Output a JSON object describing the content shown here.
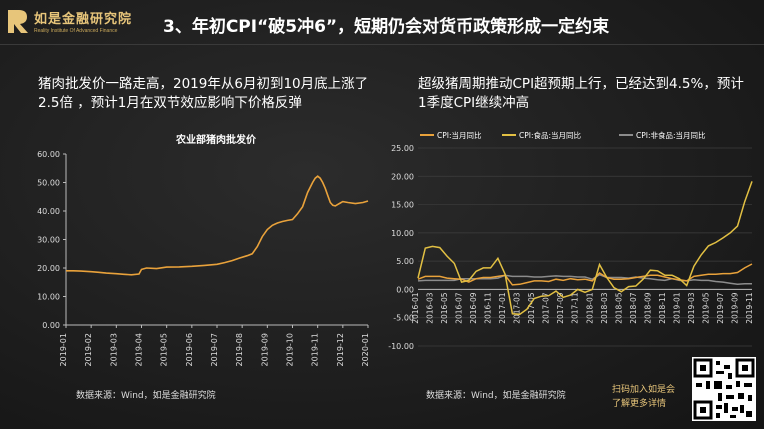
{
  "logo": {
    "cn": "如是金融研究院",
    "en": "Reality Institute Of Advanced Finance"
  },
  "title": "3、年初CPI“破5冲6”，短期仍会对货币政策形成一定约束",
  "left_note": "猪肉批发价一路走高，2019年从6月初到10月底上涨了2.5倍 ，预计1月在双节效应影响下价格反弹",
  "right_note": "超级猪周期推动CPI超预期上行，已经达到4.5%，预计1季度CPI继续冲高",
  "left_source": "数据来源：Wind，如是金融研究院",
  "right_source": "数据来源：Wind，如是金融研究院",
  "qr_text": [
    "扫码加入如是会",
    "了解更多详情"
  ],
  "colors": {
    "pork": "#e9a23b",
    "cpi": "#e9a23b",
    "food": "#e2c043",
    "nonfood": "#8c8c8c",
    "gold": "#e7c57a"
  },
  "chart_data": [
    {
      "type": "line",
      "title": "农业部猪肉批发价",
      "ylim": [
        0,
        60
      ],
      "yticks": [
        "0.00",
        "10.00",
        "20.00",
        "30.00",
        "40.00",
        "50.00",
        "60.00"
      ],
      "xticks": [
        "2019-01",
        "2019-02",
        "2019-03",
        "2019-04",
        "2019-05",
        "2019-06",
        "2019-07",
        "2019-08",
        "2019-09",
        "2019-10",
        "2019-11",
        "2019-12",
        "2020-01"
      ],
      "grid": false,
      "series": [
        {
          "x": [
            0,
            0.3,
            0.6,
            1.0,
            1.3,
            1.6,
            2.0,
            2.3,
            2.6,
            2.9,
            3.0,
            3.2,
            3.6,
            4.0,
            4.5,
            5.0,
            5.5,
            6.0,
            6.3,
            6.6,
            6.9,
            7.2,
            7.4,
            7.6,
            7.8,
            8.0,
            8.2,
            8.4,
            8.6,
            8.8,
            9.0,
            9.2,
            9.4,
            9.6,
            9.8,
            9.9,
            10.0,
            10.1,
            10.2,
            10.3,
            10.4,
            10.5,
            10.6,
            10.7,
            10.8,
            10.9,
            11.0,
            11.2,
            11.5,
            11.8,
            12.0
          ],
          "values": [
            19.0,
            19.0,
            18.9,
            18.7,
            18.5,
            18.2,
            18.0,
            17.8,
            17.6,
            17.9,
            19.5,
            20.0,
            19.8,
            20.3,
            20.4,
            20.6,
            20.9,
            21.3,
            21.9,
            22.6,
            23.5,
            24.3,
            25.0,
            27.5,
            31.0,
            33.5,
            35.0,
            35.8,
            36.3,
            36.7,
            37.0,
            39.0,
            41.5,
            46.5,
            50.0,
            51.5,
            52.2,
            51.5,
            50.0,
            48.0,
            45.5,
            43.0,
            42.0,
            41.8,
            42.3,
            42.8,
            43.3,
            43.0,
            42.6,
            43.0,
            43.5
          ]
        }
      ]
    },
    {
      "type": "line",
      "ylim": [
        -10,
        25
      ],
      "yticks": [
        "-10.00",
        "-5.00",
        "0.00",
        "5.00",
        "10.00",
        "15.00",
        "20.00",
        "25.00"
      ],
      "xticks": [
        "2016-01",
        "2016-03",
        "2016-05",
        "2016-07",
        "2016-09",
        "2016-11",
        "2017-01",
        "2017-03",
        "2017-05",
        "2017-07",
        "2017-09",
        "2017-11",
        "2018-01",
        "2018-03",
        "2018-05",
        "2018-07",
        "2018-09",
        "2018-11",
        "2019-01",
        "2019-03",
        "2019-05",
        "2019-07",
        "2019-09",
        "2019-11"
      ],
      "grid": true,
      "legend_position": "top",
      "series": [
        {
          "name": "CPI:当月同比",
          "values": [
            1.8,
            2.3,
            2.3,
            2.3,
            2.0,
            1.9,
            1.8,
            1.3,
            1.9,
            2.1,
            2.1,
            2.3,
            2.5,
            0.8,
            0.9,
            1.2,
            1.5,
            1.5,
            1.4,
            1.8,
            1.6,
            1.9,
            1.7,
            1.8,
            1.5,
            2.9,
            2.1,
            1.8,
            1.8,
            1.9,
            2.1,
            2.3,
            2.5,
            2.5,
            2.2,
            1.9,
            1.7,
            1.5,
            2.3,
            2.5,
            2.7,
            2.7,
            2.8,
            2.8,
            3.0,
            3.8,
            4.5
          ]
        },
        {
          "name": "CPI:食品:当月同比",
          "values": [
            2.0,
            7.3,
            7.6,
            7.4,
            5.9,
            4.6,
            1.3,
            1.6,
            3.2,
            3.8,
            3.8,
            5.5,
            2.7,
            -4.3,
            -4.4,
            -3.5,
            -1.6,
            -1.2,
            -1.1,
            -0.3,
            -1.4,
            -1.0,
            0.0,
            -0.5,
            0.0,
            4.4,
            2.1,
            0.3,
            -0.4,
            0.5,
            0.6,
            1.8,
            3.4,
            3.3,
            2.5,
            2.5,
            1.9,
            0.7,
            4.1,
            6.1,
            7.7,
            8.3,
            9.1,
            10.0,
            11.2,
            15.5,
            19.1
          ]
        },
        {
          "name": "CPI:非食品:当月同比",
          "values": [
            1.5,
            1.6,
            1.6,
            1.6,
            1.6,
            1.6,
            1.9,
            1.9,
            1.9,
            1.9,
            1.9,
            2.0,
            2.5,
            2.3,
            2.3,
            2.3,
            2.2,
            2.2,
            2.3,
            2.4,
            2.3,
            2.3,
            2.2,
            2.2,
            1.8,
            2.6,
            2.1,
            2.1,
            2.1,
            2.0,
            2.2,
            2.0,
            1.9,
            1.7,
            1.6,
            1.9,
            1.6,
            1.5,
            1.7,
            1.6,
            1.6,
            1.4,
            1.3,
            1.1,
            0.9,
            1.0,
            1.0
          ]
        }
      ]
    }
  ]
}
